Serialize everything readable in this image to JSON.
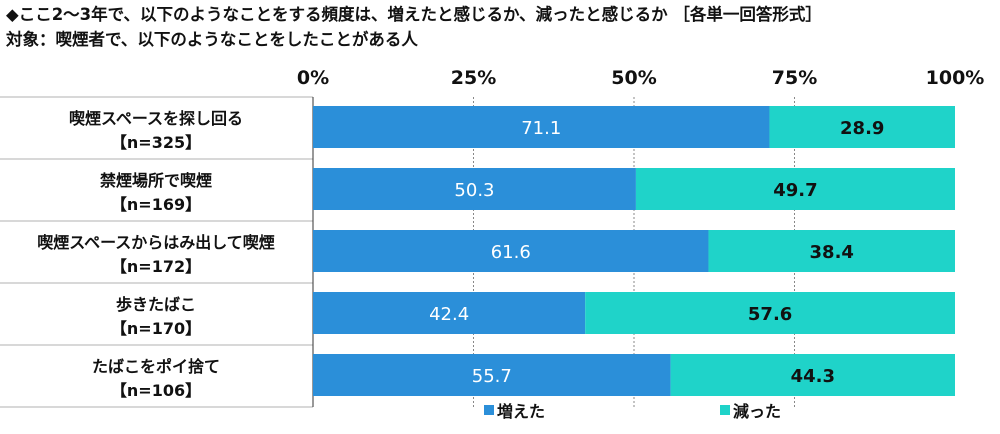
{
  "title": "◆ここ2～3年で、以下のようなことをする頻度は、増えたと感じるか、減ったと感じるか ［各単一回答形式］",
  "subtitle": "対象：喫煙者で、以下のようなことをしたことがある人",
  "colors": {
    "series0": "#2b8fd9",
    "series1": "#1fd3c9",
    "separator": "#b0b0b0",
    "grid": "#888888"
  },
  "chart_data": {
    "type": "bar",
    "orientation": "horizontal",
    "stacked": "percent",
    "xlim": [
      0,
      100
    ],
    "ticks": [
      "0%",
      "25%",
      "50%",
      "75%",
      "100%"
    ],
    "tick_values": [
      0,
      25,
      50,
      75,
      100
    ],
    "legend_position": "bottom",
    "categories": [
      {
        "label": "喫煙スペースを探し回る",
        "n": "【n=325】"
      },
      {
        "label": "禁煙場所で喫煙",
        "n": "【n=169】"
      },
      {
        "label": "喫煙スペースからはみ出して喫煙",
        "n": "【n=172】"
      },
      {
        "label": "歩きたばこ",
        "n": "【n=170】"
      },
      {
        "label": "たばこをポイ捨て",
        "n": "【n=106】"
      }
    ],
    "series": [
      {
        "name": "増えた",
        "values": [
          71.1,
          50.3,
          61.6,
          42.4,
          55.7
        ],
        "labels": [
          "71.1",
          "50.3",
          "61.6",
          "42.4",
          "55.7"
        ]
      },
      {
        "name": "減った",
        "values": [
          28.9,
          49.7,
          38.4,
          57.6,
          44.3
        ],
        "labels": [
          "28.9",
          "49.7",
          "38.4",
          "57.6",
          "44.3"
        ]
      }
    ]
  }
}
